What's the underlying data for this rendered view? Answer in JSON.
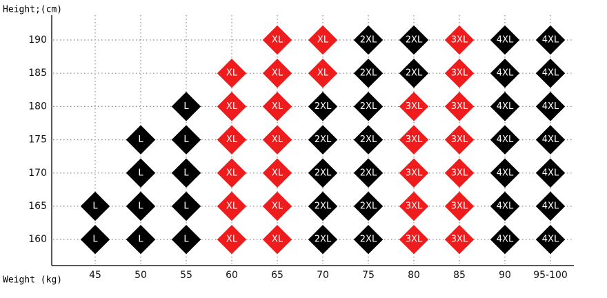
{
  "y_axis_title": "Height;(cm)",
  "x_axis_title": "Weight (kg)",
  "columns": [
    "45",
    "50",
    "55",
    "60",
    "65",
    "70",
    "75",
    "80",
    "85",
    "90",
    "95-100"
  ],
  "rows": [
    {
      "height": "190",
      "sizes": [
        null,
        null,
        null,
        null,
        "XL",
        "XL",
        "2XL",
        "2XL",
        "3XL",
        "4XL",
        "4XL"
      ]
    },
    {
      "height": "185",
      "sizes": [
        null,
        null,
        null,
        "XL",
        "XL",
        "XL",
        "2XL",
        "2XL",
        "3XL",
        "4XL",
        "4XL"
      ]
    },
    {
      "height": "180",
      "sizes": [
        null,
        null,
        "L",
        "XL",
        "XL",
        "2XL",
        "2XL",
        "3XL",
        "3XL",
        "4XL",
        "4XL"
      ]
    },
    {
      "height": "175",
      "sizes": [
        null,
        "L",
        "L",
        "XL",
        "XL",
        "2XL",
        "2XL",
        "3XL",
        "3XL",
        "4XL",
        "4XL"
      ]
    },
    {
      "height": "170",
      "sizes": [
        null,
        "L",
        "L",
        "XL",
        "XL",
        "2XL",
        "2XL",
        "3XL",
        "3XL",
        "4XL",
        "4XL"
      ]
    },
    {
      "height": "165",
      "sizes": [
        "L",
        "L",
        "L",
        "XL",
        "XL",
        "2XL",
        "2XL",
        "3XL",
        "3XL",
        "4XL",
        "4XL"
      ]
    },
    {
      "height": "160",
      "sizes": [
        "L",
        "L",
        "L",
        "XL",
        "XL",
        "2XL",
        "2XL",
        "3XL",
        "3XL",
        "4XL",
        "4XL"
      ]
    }
  ],
  "size_colors": {
    "L": "#000000",
    "XL": "#ee1c1c",
    "2XL": "#000000",
    "3XL": "#ee1c1c",
    "4XL": "#000000"
  }
}
